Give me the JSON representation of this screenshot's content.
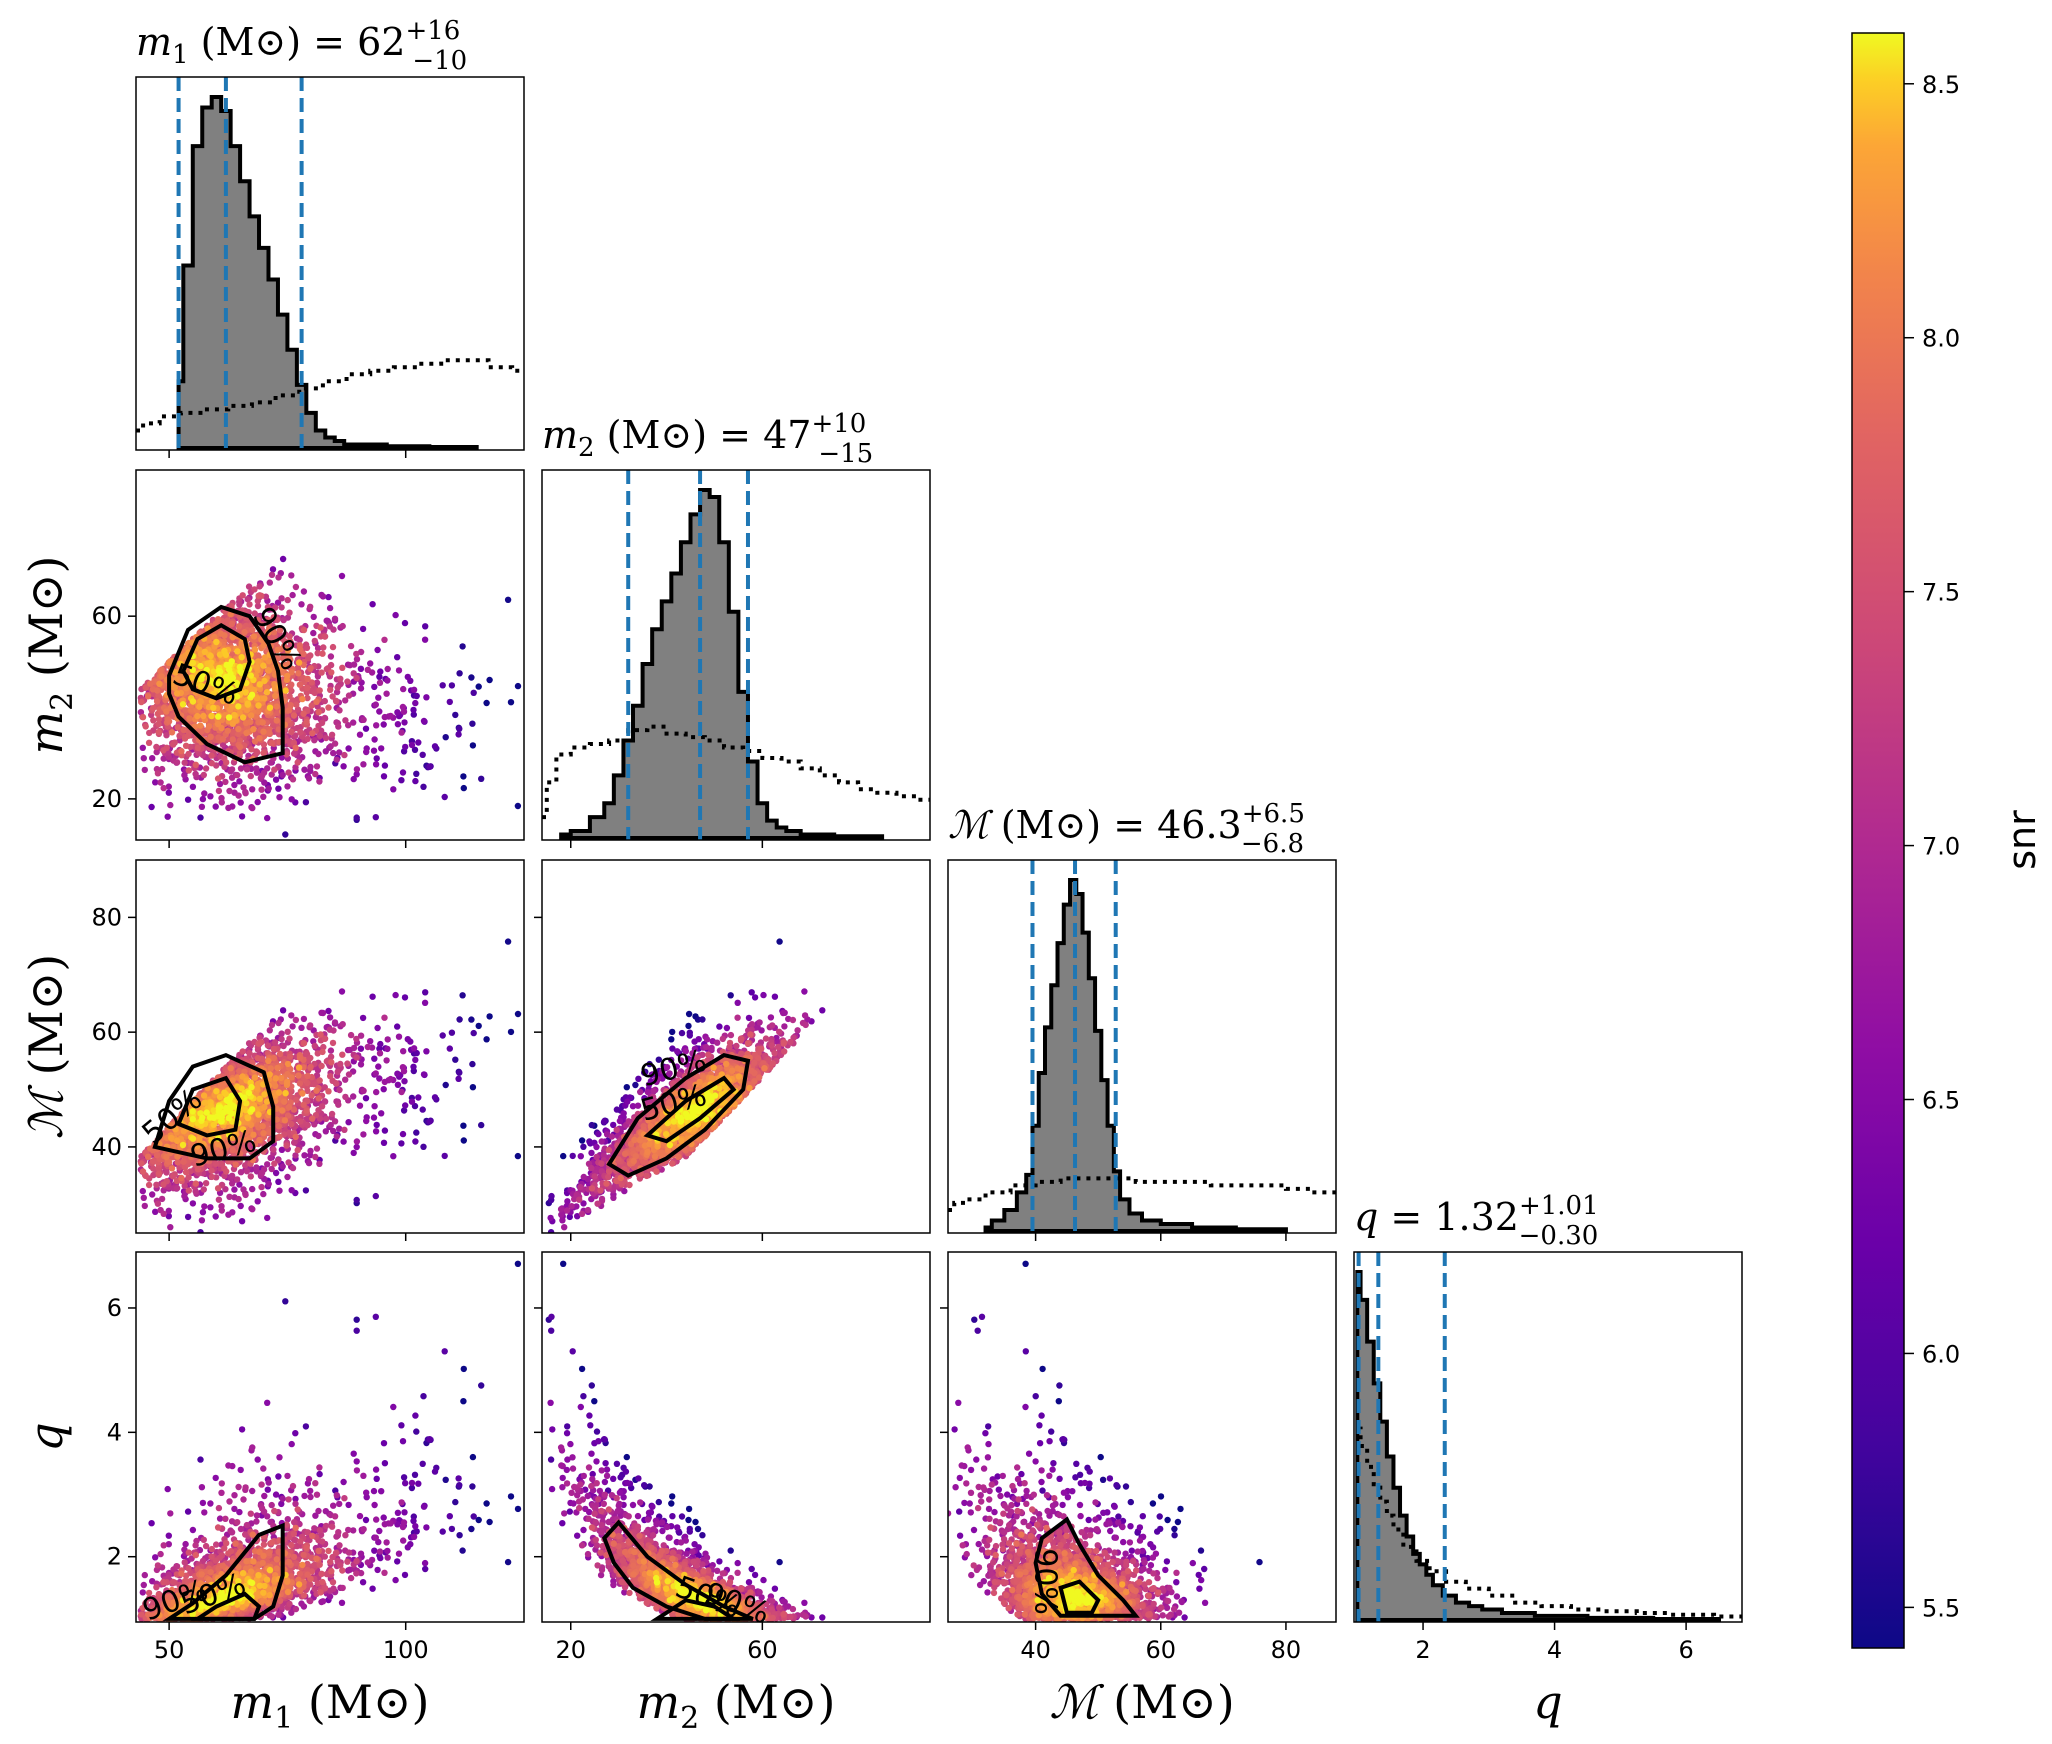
{
  "chart_data": {
    "type": "corner",
    "parameters": [
      {
        "key": "m1",
        "label": "m",
        "sub": "1",
        "unit": "(M⊙)",
        "range": [
          43,
          125
        ],
        "ticks": [
          50,
          100
        ],
        "title_value": "62",
        "title_plus": "+16",
        "title_minus": "−10",
        "median": 62,
        "lower": 52,
        "upper": 78,
        "posterior_hist": [
          [
            52,
            0.19
          ],
          [
            54,
            0.52
          ],
          [
            56,
            0.86
          ],
          [
            58,
            0.97
          ],
          [
            60,
            1.0
          ],
          [
            62,
            0.96
          ],
          [
            64,
            0.86
          ],
          [
            66,
            0.76
          ],
          [
            68,
            0.66
          ],
          [
            70,
            0.57
          ],
          [
            72,
            0.48
          ],
          [
            74,
            0.38
          ],
          [
            76,
            0.28
          ],
          [
            78,
            0.18
          ],
          [
            80,
            0.1
          ],
          [
            82,
            0.05
          ],
          [
            84,
            0.03
          ],
          [
            86,
            0.02
          ],
          [
            88,
            0.01
          ],
          [
            92,
            0.01
          ],
          [
            100,
            0.005
          ],
          [
            110,
            0.003
          ]
        ],
        "prior_hist": [
          [
            43,
            0.05
          ],
          [
            46,
            0.07
          ],
          [
            50,
            0.09
          ],
          [
            55,
            0.1
          ],
          [
            60,
            0.11
          ],
          [
            65,
            0.12
          ],
          [
            70,
            0.13
          ],
          [
            75,
            0.15
          ],
          [
            80,
            0.17
          ],
          [
            85,
            0.19
          ],
          [
            90,
            0.21
          ],
          [
            95,
            0.22
          ],
          [
            100,
            0.23
          ],
          [
            105,
            0.24
          ],
          [
            110,
            0.25
          ],
          [
            115,
            0.25
          ],
          [
            120,
            0.23
          ],
          [
            125,
            0.22
          ]
        ]
      },
      {
        "key": "m2",
        "label": "m",
        "sub": "2",
        "unit": "(M⊙)",
        "range": [
          14,
          95
        ],
        "ticks": [
          20,
          60
        ],
        "title_value": "47",
        "title_plus": "+10",
        "title_minus": "−15",
        "median": 47,
        "lower": 32,
        "upper": 57,
        "posterior_hist": [
          [
            18,
            0.01
          ],
          [
            22,
            0.02
          ],
          [
            26,
            0.06
          ],
          [
            28,
            0.1
          ],
          [
            30,
            0.18
          ],
          [
            32,
            0.28
          ],
          [
            34,
            0.38
          ],
          [
            36,
            0.5
          ],
          [
            38,
            0.6
          ],
          [
            40,
            0.68
          ],
          [
            42,
            0.76
          ],
          [
            44,
            0.85
          ],
          [
            46,
            0.93
          ],
          [
            48,
            1.0
          ],
          [
            50,
            0.98
          ],
          [
            52,
            0.85
          ],
          [
            54,
            0.65
          ],
          [
            56,
            0.42
          ],
          [
            58,
            0.22
          ],
          [
            60,
            0.1
          ],
          [
            62,
            0.05
          ],
          [
            64,
            0.03
          ],
          [
            66,
            0.02
          ],
          [
            70,
            0.01
          ],
          [
            80,
            0.005
          ]
        ],
        "prior_hist": [
          [
            14,
            0.06
          ],
          [
            16,
            0.16
          ],
          [
            18,
            0.24
          ],
          [
            22,
            0.26
          ],
          [
            26,
            0.27
          ],
          [
            30,
            0.28
          ],
          [
            34,
            0.31
          ],
          [
            38,
            0.32
          ],
          [
            42,
            0.3
          ],
          [
            46,
            0.29
          ],
          [
            50,
            0.28
          ],
          [
            54,
            0.26
          ],
          [
            58,
            0.25
          ],
          [
            62,
            0.23
          ],
          [
            66,
            0.22
          ],
          [
            70,
            0.2
          ],
          [
            74,
            0.18
          ],
          [
            78,
            0.16
          ],
          [
            82,
            0.14
          ],
          [
            86,
            0.13
          ],
          [
            90,
            0.12
          ],
          [
            95,
            0.11
          ]
        ]
      },
      {
        "key": "mc",
        "label": "ℳ",
        "sub": "",
        "unit": "(M⊙)",
        "range": [
          26,
          88
        ],
        "ticks": [
          40,
          60,
          80
        ],
        "title_value": "46.3",
        "title_plus": "+6.5",
        "title_minus": "−6.8",
        "median": 46.3,
        "lower": 39.5,
        "upper": 52.8,
        "posterior_hist": [
          [
            32,
            0.01
          ],
          [
            34,
            0.03
          ],
          [
            36,
            0.06
          ],
          [
            38,
            0.11
          ],
          [
            39,
            0.16
          ],
          [
            40,
            0.3
          ],
          [
            41,
            0.45
          ],
          [
            42,
            0.58
          ],
          [
            43,
            0.7
          ],
          [
            44,
            0.82
          ],
          [
            45,
            0.93
          ],
          [
            46,
            1.0
          ],
          [
            47,
            0.96
          ],
          [
            48,
            0.85
          ],
          [
            49,
            0.72
          ],
          [
            50,
            0.57
          ],
          [
            51,
            0.43
          ],
          [
            52,
            0.3
          ],
          [
            53,
            0.17
          ],
          [
            54,
            0.09
          ],
          [
            56,
            0.05
          ],
          [
            58,
            0.03
          ],
          [
            62,
            0.02
          ],
          [
            68,
            0.01
          ],
          [
            76,
            0.005
          ]
        ],
        "prior_hist": [
          [
            26,
            0.06
          ],
          [
            28,
            0.08
          ],
          [
            30,
            0.09
          ],
          [
            34,
            0.11
          ],
          [
            38,
            0.13
          ],
          [
            42,
            0.14
          ],
          [
            46,
            0.15
          ],
          [
            50,
            0.15
          ],
          [
            54,
            0.15
          ],
          [
            58,
            0.14
          ],
          [
            62,
            0.14
          ],
          [
            66,
            0.14
          ],
          [
            70,
            0.13
          ],
          [
            74,
            0.13
          ],
          [
            78,
            0.13
          ],
          [
            82,
            0.12
          ],
          [
            86,
            0.11
          ],
          [
            88,
            0.11
          ]
        ]
      },
      {
        "key": "q",
        "label": "q",
        "sub": "",
        "unit": "",
        "range": [
          0.95,
          6.85
        ],
        "ticks": [
          2,
          4,
          6
        ],
        "title_value": "1.32",
        "title_plus": "+1.01",
        "title_minus": "−0.30",
        "median": 1.32,
        "lower": 1.02,
        "upper": 2.33,
        "posterior_hist": [
          [
            1.0,
            1.0
          ],
          [
            1.1,
            0.92
          ],
          [
            1.2,
            0.8
          ],
          [
            1.3,
            0.68
          ],
          [
            1.4,
            0.57
          ],
          [
            1.5,
            0.47
          ],
          [
            1.6,
            0.38
          ],
          [
            1.7,
            0.3
          ],
          [
            1.8,
            0.24
          ],
          [
            1.9,
            0.19
          ],
          [
            2.0,
            0.16
          ],
          [
            2.1,
            0.13
          ],
          [
            2.2,
            0.1
          ],
          [
            2.4,
            0.07
          ],
          [
            2.6,
            0.05
          ],
          [
            2.8,
            0.04
          ],
          [
            3.0,
            0.03
          ],
          [
            3.4,
            0.02
          ],
          [
            4.0,
            0.012
          ],
          [
            5.0,
            0.006
          ],
          [
            6.0,
            0.003
          ]
        ],
        "prior_hist": [
          [
            1.0,
            0.55
          ],
          [
            1.1,
            0.5
          ],
          [
            1.2,
            0.44
          ],
          [
            1.3,
            0.39
          ],
          [
            1.4,
            0.34
          ],
          [
            1.5,
            0.3
          ],
          [
            1.6,
            0.26
          ],
          [
            1.8,
            0.21
          ],
          [
            2.0,
            0.17
          ],
          [
            2.2,
            0.14
          ],
          [
            2.5,
            0.11
          ],
          [
            2.8,
            0.09
          ],
          [
            3.2,
            0.07
          ],
          [
            3.6,
            0.05
          ],
          [
            4.0,
            0.04
          ],
          [
            4.5,
            0.03
          ],
          [
            5.0,
            0.025
          ],
          [
            5.5,
            0.02
          ],
          [
            6.0,
            0.015
          ],
          [
            6.85,
            0.01
          ]
        ]
      }
    ],
    "y_ticks": {
      "m2": [
        20,
        60
      ],
      "mc": [
        40,
        60,
        80
      ],
      "q": [
        2,
        4,
        6
      ]
    },
    "y_ranges": {
      "m2": [
        11,
        92
      ],
      "mc": [
        25,
        90
      ],
      "q": [
        0.95,
        6.9
      ]
    },
    "contour_labels": [
      "50%",
      "90%"
    ],
    "colorbar": {
      "label": "snr",
      "range": [
        5.42,
        8.6
      ],
      "ticks": [
        5.5,
        6.0,
        6.5,
        7.0,
        7.5,
        8.0,
        8.5
      ],
      "tick_labels": [
        "5.5",
        "6.0",
        "6.5",
        "7.0",
        "7.5",
        "8.0",
        "8.5"
      ],
      "colormap": "plasma"
    },
    "colors": {
      "dashed_quantile_lines": "#1f77b4",
      "posterior_fill": "#808080",
      "posterior_line": "#000000",
      "prior_line": "#000000",
      "contour": "#000000"
    }
  }
}
